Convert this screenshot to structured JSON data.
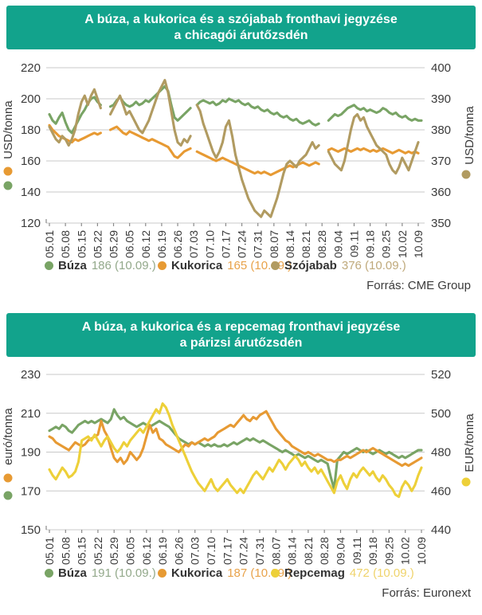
{
  "colors": {
    "banner": "#12a38c",
    "title_text": "#ffffff",
    "grid": "#c8c8c8",
    "axis_text": "#3a3a3a",
    "tick_mark": "#8a8a8a",
    "legend_label": "#333333",
    "source_text": "#3b3b3b",
    "background": "#ffffff"
  },
  "chart_data": [
    {
      "type": "line",
      "title_line1": "A búza, a kukorica és a szójabab fronthavi jegyzése",
      "title_line2": "a chicagói árutőzsdén",
      "title": "A búza, a kukorica és a szójabab fronthavi jegyzése a chicagói árutőzsdén",
      "ylabel_left": "USD/tonna",
      "ylabel_right": "USD/tonna",
      "xlabel": "",
      "left_ylim": [
        120,
        220
      ],
      "right_ylim": [
        350,
        400
      ],
      "left_ticks": [
        220,
        200,
        180,
        160,
        140,
        120
      ],
      "right_ticks": [
        400,
        390,
        380,
        370,
        360,
        350
      ],
      "grid": "horizontal",
      "legend_position": "bottom",
      "x_tick_labels": [
        "05.01",
        "05.08",
        "05.15",
        "05.22",
        "05.29",
        "06.05",
        "06.12",
        "06.19",
        "06.26",
        "07.03",
        "07.10",
        "07.17",
        "07.24",
        "07.31",
        "08.07",
        "08.14",
        "08.21",
        "08.28",
        "09.04",
        "09.11",
        "09.18",
        "09.25",
        "10.02",
        "10.09"
      ],
      "left_axis_series": [
        1,
        0
      ],
      "right_axis_series": 2,
      "legend": [
        {
          "label": "Búza",
          "value_text": "186 (10.09.)",
          "series": 0
        },
        {
          "label": "Kukorica",
          "value_text": "165 (10.09.)",
          "series": 1
        },
        {
          "label": "Szójabab",
          "value_text": "376 (10.09.)",
          "series": 2
        }
      ],
      "source": "Forrás: CME Group",
      "series": [
        {
          "name": "Búza",
          "axis": "left",
          "color": "#79a465",
          "value_color": "#93a98b",
          "last_value": 186,
          "last_date": "10.09.",
          "values": [
            190,
            186,
            184,
            188,
            191,
            185,
            180,
            178,
            182,
            186,
            190,
            193,
            197,
            200,
            201,
            198,
            196,
            null,
            null,
            195,
            196,
            199,
            201,
            198,
            196,
            195,
            196,
            198,
            196,
            197,
            199,
            198,
            200,
            202,
            204,
            206,
            208,
            205,
            196,
            188,
            186,
            188,
            190,
            192,
            194,
            null,
            196,
            198,
            199,
            198,
            197,
            198,
            196,
            197,
            199,
            198,
            200,
            199,
            198,
            199,
            197,
            196,
            197,
            195,
            194,
            195,
            193,
            192,
            193,
            191,
            190,
            191,
            189,
            188,
            189,
            187,
            186,
            187,
            185,
            184,
            185,
            186,
            184,
            183,
            184,
            null,
            null,
            186,
            188,
            190,
            189,
            190,
            192,
            194,
            195,
            196,
            194,
            193,
            194,
            192,
            193,
            192,
            191,
            192,
            194,
            193,
            191,
            190,
            191,
            189,
            188,
            189,
            187,
            186,
            187,
            186,
            186
          ]
        },
        {
          "name": "Kukorica",
          "axis": "left",
          "color": "#e79a33",
          "value_color": "#e8a24a",
          "last_value": 165,
          "last_date": "10.09.",
          "values": [
            183,
            180,
            178,
            176,
            175,
            174,
            173,
            172,
            174,
            173,
            174,
            175,
            176,
            177,
            178,
            177,
            178,
            null,
            null,
            180,
            181,
            182,
            180,
            178,
            177,
            179,
            178,
            177,
            176,
            175,
            174,
            173,
            174,
            173,
            172,
            171,
            170,
            169,
            166,
            163,
            162,
            164,
            166,
            167,
            168,
            null,
            166,
            165,
            164,
            163,
            162,
            161,
            160,
            161,
            162,
            161,
            160,
            159,
            158,
            157,
            156,
            155,
            154,
            153,
            152,
            153,
            152,
            153,
            152,
            151,
            152,
            153,
            154,
            155,
            156,
            157,
            156,
            157,
            158,
            159,
            158,
            157,
            158,
            159,
            158,
            null,
            null,
            167,
            168,
            167,
            166,
            167,
            168,
            167,
            166,
            167,
            168,
            167,
            168,
            167,
            166,
            167,
            166,
            167,
            168,
            167,
            166,
            165,
            166,
            167,
            166,
            165,
            166,
            165,
            166,
            165
          ]
        },
        {
          "name": "Szójabab",
          "axis": "right",
          "color": "#b19b61",
          "value_color": "#bfa97b",
          "last_value": 376,
          "last_date": "10.09.",
          "values": [
            381,
            379,
            377,
            376,
            378,
            377,
            375,
            377,
            380,
            385,
            389,
            391,
            388,
            391,
            393,
            390,
            387,
            null,
            null,
            385,
            387,
            389,
            391,
            388,
            385,
            386,
            384,
            382,
            380,
            379,
            381,
            383,
            386,
            389,
            392,
            394,
            396,
            392,
            386,
            380,
            376,
            375,
            377,
            376,
            378,
            null,
            388,
            386,
            382,
            379,
            376,
            373,
            371,
            373,
            376,
            381,
            383,
            378,
            372,
            368,
            364,
            361,
            358,
            356,
            354,
            353,
            352,
            354,
            353,
            352,
            355,
            358,
            362,
            366,
            369,
            370,
            369,
            368,
            370,
            371,
            372,
            374,
            376,
            374,
            375,
            null,
            null,
            373,
            371,
            369,
            368,
            367,
            370,
            375,
            380,
            384,
            385,
            383,
            384,
            381,
            379,
            377,
            375,
            374,
            373,
            372,
            369,
            367,
            366,
            368,
            371,
            369,
            367,
            370,
            373,
            376
          ]
        }
      ]
    },
    {
      "type": "line",
      "title_line1": "A búza, a kukorica és a repcemag fronthavi jegyzése",
      "title_line2": "a párizsi árutőzsdén",
      "title": "A búza, a kukorica és a repcemag fronthavi jegyzése a párizsi árutőzsdén",
      "ylabel_left": "euró/tonna",
      "ylabel_right": "EUR/tonna",
      "xlabel": "",
      "left_ylim": [
        150,
        230
      ],
      "right_ylim": [
        440,
        520
      ],
      "left_ticks": [
        230,
        210,
        190,
        170,
        150
      ],
      "right_ticks": [
        520,
        500,
        480,
        460,
        440
      ],
      "grid": "horizontal",
      "legend_position": "bottom",
      "x_tick_labels": [
        "05.01",
        "05.08",
        "05.15",
        "05.22",
        "05.29",
        "06.05",
        "06.12",
        "06.19",
        "06.26",
        "07.03",
        "07.10",
        "07.17",
        "07.24",
        "07.31",
        "08.07",
        "08.14",
        "08.21",
        "08.28",
        "09.04",
        "09.11",
        "09.18",
        "09.25",
        "10.02",
        "10.09"
      ],
      "left_axis_series": [
        1,
        0
      ],
      "right_axis_series": 2,
      "legend": [
        {
          "label": "Búza",
          "value_text": "191 (10.09.)",
          "series": 0
        },
        {
          "label": "Kukorica",
          "value_text": "187 (10.09.)",
          "series": 1
        },
        {
          "label": "Repcemag",
          "value_text": "472 (10.09.)",
          "series": 2
        }
      ],
      "source": "Forrás: Euronext",
      "series": [
        {
          "name": "Búza",
          "axis": "left",
          "color": "#79a465",
          "value_color": "#93a98b",
          "last_value": 191,
          "last_date": "10.09.",
          "values": [
            201,
            202,
            203,
            202,
            204,
            203,
            201,
            200,
            202,
            204,
            205,
            206,
            205,
            206,
            205,
            206,
            207,
            206,
            205,
            207,
            212,
            209,
            207,
            208,
            206,
            205,
            204,
            203,
            204,
            205,
            204,
            203,
            204,
            205,
            206,
            205,
            204,
            203,
            201,
            199,
            197,
            196,
            195,
            194,
            195,
            194,
            195,
            194,
            193,
            194,
            193,
            194,
            193,
            193,
            194,
            193,
            194,
            195,
            194,
            195,
            196,
            197,
            196,
            197,
            196,
            195,
            196,
            195,
            194,
            193,
            192,
            191,
            190,
            191,
            190,
            189,
            188,
            189,
            188,
            187,
            188,
            187,
            186,
            185,
            186,
            185,
            184,
            177,
            171,
            186,
            188,
            190,
            189,
            190,
            191,
            192,
            191,
            190,
            191,
            190,
            189,
            190,
            191,
            190,
            189,
            190,
            189,
            188,
            187,
            188,
            187,
            188,
            189,
            190,
            191,
            191
          ]
        },
        {
          "name": "Kukorica",
          "axis": "left",
          "color": "#e79a33",
          "value_color": "#e8a24a",
          "last_value": 187,
          "last_date": "10.09.",
          "values": [
            198,
            197,
            195,
            194,
            193,
            192,
            191,
            193,
            195,
            194,
            193,
            194,
            196,
            197,
            198,
            199,
            206,
            201,
            198,
            192,
            187,
            185,
            187,
            184,
            186,
            190,
            188,
            186,
            188,
            192,
            198,
            204,
            200,
            202,
            197,
            196,
            194,
            193,
            192,
            191,
            190,
            192,
            194,
            193,
            195,
            194,
            195,
            196,
            197,
            196,
            197,
            198,
            200,
            201,
            202,
            203,
            204,
            203,
            205,
            207,
            209,
            207,
            206,
            208,
            207,
            209,
            210,
            211,
            208,
            205,
            202,
            200,
            198,
            196,
            195,
            193,
            192,
            191,
            190,
            189,
            190,
            189,
            188,
            189,
            188,
            187,
            186,
            186,
            185,
            186,
            186,
            187,
            188,
            187,
            188,
            189,
            190,
            191,
            190,
            191,
            192,
            191,
            190,
            189,
            188,
            187,
            186,
            185,
            184,
            183,
            184,
            183,
            184,
            185,
            186,
            187
          ]
        },
        {
          "name": "Repcemag",
          "axis": "right",
          "color": "#edd039",
          "value_color": "#efd36b",
          "last_value": 472,
          "last_date": "10.09.",
          "values": [
            471,
            468,
            466,
            469,
            472,
            470,
            467,
            468,
            470,
            475,
            486,
            487,
            488,
            486,
            489,
            486,
            483,
            486,
            488,
            485,
            482,
            480,
            482,
            485,
            483,
            486,
            488,
            490,
            492,
            490,
            493,
            496,
            499,
            502,
            500,
            505,
            503,
            499,
            494,
            490,
            486,
            482,
            478,
            474,
            470,
            467,
            464,
            462,
            460,
            463,
            466,
            462,
            460,
            462,
            464,
            466,
            463,
            461,
            459,
            461,
            459,
            462,
            465,
            468,
            470,
            468,
            466,
            469,
            472,
            470,
            473,
            476,
            474,
            471,
            474,
            476,
            478,
            476,
            473,
            475,
            472,
            470,
            472,
            469,
            471,
            468,
            465,
            462,
            459,
            465,
            468,
            464,
            461,
            466,
            469,
            467,
            470,
            472,
            470,
            468,
            470,
            467,
            465,
            468,
            466,
            463,
            461,
            458,
            457,
            462,
            465,
            463,
            460,
            463,
            468,
            472
          ]
        }
      ]
    }
  ]
}
